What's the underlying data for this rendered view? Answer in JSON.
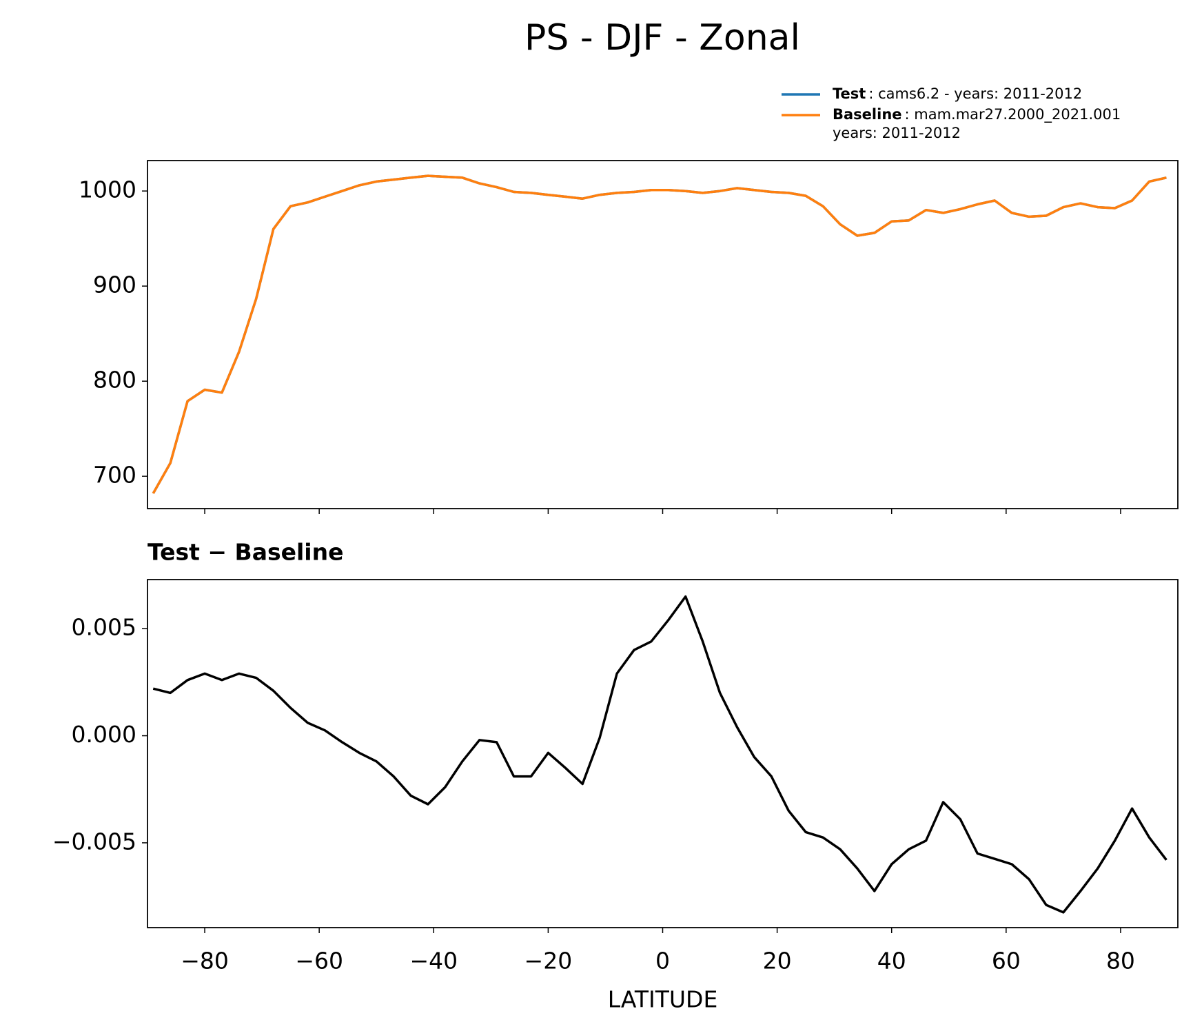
{
  "title": "PS - DJF - Zonal",
  "chart_data": [
    {
      "type": "line",
      "x": [
        -89,
        -86,
        -83,
        -80,
        -77,
        -74,
        -71,
        -68,
        -65,
        -62,
        -59,
        -56,
        -53,
        -50,
        -47,
        -44,
        -41,
        -38,
        -35,
        -32,
        -29,
        -26,
        -23,
        -20,
        -17,
        -14,
        -11,
        -8,
        -5,
        -2,
        1,
        4,
        7,
        10,
        13,
        16,
        19,
        22,
        25,
        28,
        31,
        34,
        37,
        40,
        43,
        46,
        49,
        52,
        55,
        58,
        61,
        64,
        67,
        70,
        73,
        76,
        79,
        82,
        85,
        88
      ],
      "series": [
        {
          "name": "Test",
          "description": [
            ": cams6.2 - years: 2011-2012"
          ],
          "color": "#1f77b4",
          "values": [
            682,
            714,
            779,
            791,
            788,
            831,
            887,
            960,
            984,
            988,
            994,
            1000,
            1006,
            1010,
            1012,
            1014,
            1016,
            1015,
            1014,
            1008,
            1004,
            999,
            998,
            996,
            994,
            992,
            996,
            998,
            999,
            1001,
            1001,
            1000,
            998,
            1000,
            1003,
            1001,
            999,
            998,
            995,
            984,
            965,
            953,
            956,
            968,
            969,
            980,
            977,
            981,
            986,
            990,
            977,
            973,
            974,
            983,
            987,
            983,
            982,
            990,
            1010,
            1014
          ]
        },
        {
          "name": "Baseline",
          "description": [
            ": mam.mar27.2000_2021.001",
            "years: 2011-2012"
          ],
          "color": "#ff7f0e",
          "values": [
            682,
            714,
            779,
            791,
            788,
            831,
            887,
            960,
            984,
            988,
            994,
            1000,
            1006,
            1010,
            1012,
            1014,
            1016,
            1015,
            1014,
            1008,
            1004,
            999,
            998,
            996,
            994,
            992,
            996,
            998,
            999,
            1001,
            1001,
            1000,
            998,
            1000,
            1003,
            1001,
            999,
            998,
            995,
            984,
            965,
            953,
            956,
            968,
            969,
            980,
            977,
            981,
            986,
            990,
            977,
            973,
            974,
            983,
            987,
            983,
            982,
            990,
            1010,
            1014
          ]
        }
      ],
      "xlim": [
        -90,
        90
      ],
      "ylim": [
        666,
        1032
      ],
      "yticks": [
        700,
        800,
        900,
        1000
      ]
    },
    {
      "type": "line",
      "title": "Test − Baseline",
      "x_label": "LATITUDE",
      "x": [
        -89,
        -86,
        -83,
        -80,
        -77,
        -74,
        -71,
        -68,
        -65,
        -62,
        -59,
        -56,
        -53,
        -50,
        -47,
        -44,
        -41,
        -38,
        -35,
        -32,
        -29,
        -26,
        -23,
        -20,
        -17,
        -14,
        -11,
        -8,
        -5,
        -2,
        1,
        4,
        7,
        10,
        13,
        16,
        19,
        22,
        25,
        28,
        31,
        34,
        37,
        40,
        43,
        46,
        49,
        52,
        55,
        58,
        61,
        64,
        67,
        70,
        73,
        76,
        79,
        82,
        85,
        88
      ],
      "series": [
        {
          "color": "#000000",
          "values": [
            0.0022,
            0.002,
            0.0026,
            0.0029,
            0.0026,
            0.0029,
            0.0027,
            0.0021,
            0.0013,
            0.0006,
            0.00025,
            -0.0003,
            -0.0008,
            -0.0012,
            -0.0019,
            -0.0028,
            -0.0032,
            -0.0024,
            -0.0012,
            -0.0002,
            -0.0003,
            -0.0019,
            -0.0019,
            -0.0008,
            -0.0015,
            -0.00225,
            -0.0001,
            0.0029,
            0.004,
            0.0044,
            0.0054,
            0.0065,
            0.0044,
            0.002,
            0.0004,
            -0.001,
            -0.0019,
            -0.0035,
            -0.0045,
            -0.00475,
            -0.0053,
            -0.0062,
            -0.00725,
            -0.006,
            -0.0053,
            -0.0049,
            -0.0031,
            -0.0039,
            -0.0055,
            -0.00575,
            -0.006,
            -0.0067,
            -0.0079,
            -0.00825,
            -0.00725,
            -0.0062,
            -0.0049,
            -0.0034,
            -0.00475,
            -0.0058
          ]
        }
      ],
      "xlim": [
        -90,
        90
      ],
      "ylim": [
        -0.00896,
        0.00729
      ],
      "yticks": [
        {
          "value": -0.005,
          "label": "−0.005"
        },
        {
          "value": 0,
          "label": "0.000"
        },
        {
          "value": 0.005,
          "label": "0.005"
        }
      ],
      "xticks": [
        {
          "value": -80,
          "label": "−80"
        },
        {
          "value": -60,
          "label": "−60"
        },
        {
          "value": -40,
          "label": "−40"
        },
        {
          "value": -20,
          "label": "−20"
        },
        0,
        20,
        40,
        60,
        80
      ]
    }
  ]
}
